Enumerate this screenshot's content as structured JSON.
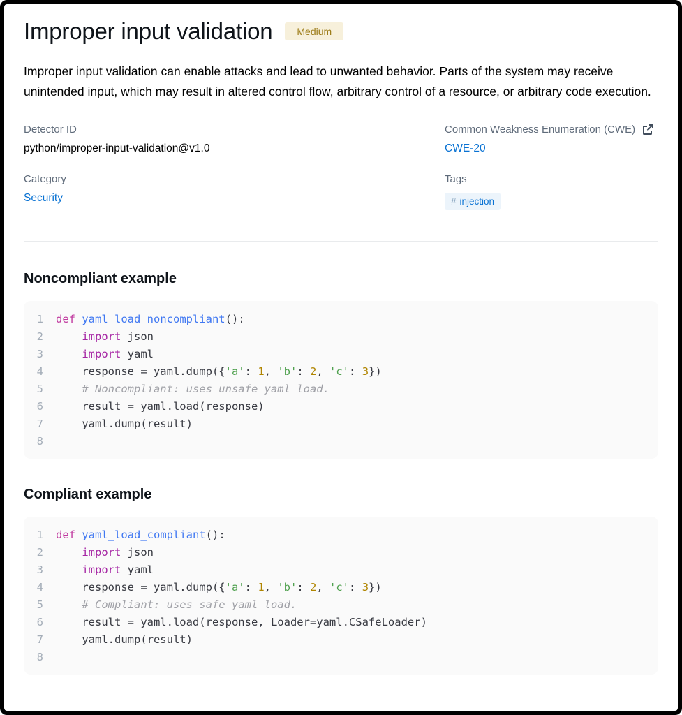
{
  "page": {
    "title": "Improper input validation",
    "severity_badge": "Medium",
    "description": "Improper input validation can enable attacks and lead to unwanted behavior. Parts of the system may receive unintended input, which may result in altered control flow, arbitrary control of a resource, or arbitrary code execution."
  },
  "metadata": {
    "detector_id_label": "Detector ID",
    "detector_id_value": "python/improper-input-validation@v1.0",
    "category_label": "Category",
    "category_value": "Security",
    "cwe_label": "Common Weakness Enumeration (CWE)",
    "cwe_link": "CWE-20",
    "tags_label": "Tags",
    "tags": [
      {
        "hash": "#",
        "label": "injection"
      }
    ]
  },
  "icons": {
    "external_link": "external-link-icon"
  },
  "colors": {
    "link_blue": "#0972d3",
    "severity_medium_bg": "#f7f0db",
    "severity_medium_text": "#9c7b16",
    "tag_bg": "#ecf4fb",
    "code_bg": "#fafafa",
    "label_gray": "#5f6b7a",
    "syntax_keyword_def": "#c0399f",
    "syntax_keyword_import": "#a626a4",
    "syntax_function": "#4078f2",
    "syntax_string": "#50a14f",
    "syntax_number": "#b08500",
    "syntax_comment": "#a0a1a7"
  },
  "sections": [
    {
      "heading": "Noncompliant example",
      "code_lines": [
        [
          {
            "t": "def",
            "c": "def"
          },
          {
            "t": " "
          },
          {
            "t": "yaml_load_noncompliant",
            "c": "fn"
          },
          {
            "t": "():"
          }
        ],
        [
          {
            "t": "    "
          },
          {
            "t": "import",
            "c": "kw"
          },
          {
            "t": " json"
          }
        ],
        [
          {
            "t": "    "
          },
          {
            "t": "import",
            "c": "kw"
          },
          {
            "t": " yaml"
          }
        ],
        [
          {
            "t": "    response = yaml.dump({"
          },
          {
            "t": "'a'",
            "c": "str"
          },
          {
            "t": ": "
          },
          {
            "t": "1",
            "c": "num"
          },
          {
            "t": ", "
          },
          {
            "t": "'b'",
            "c": "str"
          },
          {
            "t": ": "
          },
          {
            "t": "2",
            "c": "num"
          },
          {
            "t": ", "
          },
          {
            "t": "'c'",
            "c": "str"
          },
          {
            "t": ": "
          },
          {
            "t": "3",
            "c": "num"
          },
          {
            "t": "})"
          }
        ],
        [
          {
            "t": "    "
          },
          {
            "t": "# Noncompliant: uses unsafe yaml load.",
            "c": "com"
          }
        ],
        [
          {
            "t": "    result = yaml.load(response)"
          }
        ],
        [
          {
            "t": "    yaml.dump(result)"
          }
        ],
        [
          {
            "t": ""
          }
        ]
      ]
    },
    {
      "heading": "Compliant example",
      "code_lines": [
        [
          {
            "t": "def",
            "c": "def"
          },
          {
            "t": " "
          },
          {
            "t": "yaml_load_compliant",
            "c": "fn"
          },
          {
            "t": "():"
          }
        ],
        [
          {
            "t": "    "
          },
          {
            "t": "import",
            "c": "kw"
          },
          {
            "t": " json"
          }
        ],
        [
          {
            "t": "    "
          },
          {
            "t": "import",
            "c": "kw"
          },
          {
            "t": " yaml"
          }
        ],
        [
          {
            "t": "    response = yaml.dump({"
          },
          {
            "t": "'a'",
            "c": "str"
          },
          {
            "t": ": "
          },
          {
            "t": "1",
            "c": "num"
          },
          {
            "t": ", "
          },
          {
            "t": "'b'",
            "c": "str"
          },
          {
            "t": ": "
          },
          {
            "t": "2",
            "c": "num"
          },
          {
            "t": ", "
          },
          {
            "t": "'c'",
            "c": "str"
          },
          {
            "t": ": "
          },
          {
            "t": "3",
            "c": "num"
          },
          {
            "t": "})"
          }
        ],
        [
          {
            "t": "    "
          },
          {
            "t": "# Compliant: uses safe yaml load.",
            "c": "com"
          }
        ],
        [
          {
            "t": "    result = yaml.load(response, Loader=yaml.CSafeLoader)"
          }
        ],
        [
          {
            "t": "    yaml.dump(result)"
          }
        ],
        [
          {
            "t": ""
          }
        ]
      ]
    }
  ]
}
